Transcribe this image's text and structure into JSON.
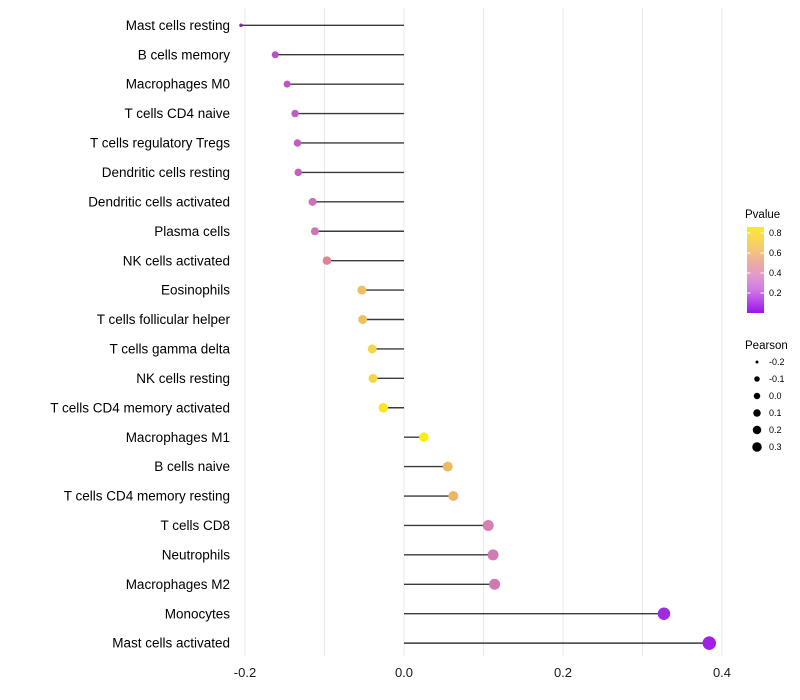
{
  "chart_data": {
    "type": "lollipop",
    "title": "",
    "xlabel": "",
    "ylabel": "",
    "x_axis": {
      "range": [
        -0.25,
        0.45
      ],
      "ticks": [
        -0.2,
        0.0,
        0.2,
        0.4
      ],
      "tick_labels": [
        "-0.2",
        "0.0",
        "0.2",
        "0.4"
      ],
      "gridlines": [
        -0.2,
        -0.1,
        0.0,
        0.1,
        0.2,
        0.3,
        0.4
      ],
      "baseline": 0.0
    },
    "rows": [
      {
        "label": "Mast cells resting",
        "pearson": -0.205,
        "pvalue_approx": 0.15,
        "color": "#7b2fa0",
        "dot_r": 1.8
      },
      {
        "label": "B cells memory",
        "pearson": -0.162,
        "pvalue_approx": 0.3,
        "color": "#b94fc6",
        "dot_r": 3.5
      },
      {
        "label": "Macrophages M0",
        "pearson": -0.147,
        "pvalue_approx": 0.32,
        "color": "#bd55c5",
        "dot_r": 3.5
      },
      {
        "label": "T cells CD4 naive",
        "pearson": -0.137,
        "pvalue_approx": 0.34,
        "color": "#c15cc2",
        "dot_r": 3.75
      },
      {
        "label": "T cells regulatory  Tregs",
        "pearson": -0.134,
        "pvalue_approx": 0.35,
        "color": "#c25ec0",
        "dot_r": 3.75
      },
      {
        "label": "Dendritic cells resting",
        "pearson": -0.133,
        "pvalue_approx": 0.36,
        "color": "#c360bf",
        "dot_r": 3.75
      },
      {
        "label": "Dendritic cells activated",
        "pearson": -0.115,
        "pvalue_approx": 0.42,
        "color": "#cc72b6",
        "dot_r": 4.0
      },
      {
        "label": "Plasma cells",
        "pearson": -0.112,
        "pvalue_approx": 0.43,
        "color": "#ce75b3",
        "dot_r": 4.0
      },
      {
        "label": "NK cells activated",
        "pearson": -0.097,
        "pvalue_approx": 0.5,
        "color": "#de8494",
        "dot_r": 4.25
      },
      {
        "label": "Eosinophils",
        "pearson": -0.053,
        "pvalue_approx": 0.65,
        "color": "#edc15d",
        "dot_r": 4.5
      },
      {
        "label": "T cells follicular helper",
        "pearson": -0.052,
        "pvalue_approx": 0.65,
        "color": "#edc15d",
        "dot_r": 4.5
      },
      {
        "label": "T cells gamma delta",
        "pearson": -0.04,
        "pvalue_approx": 0.75,
        "color": "#f2d747",
        "dot_r": 4.5
      },
      {
        "label": "NK cells resting",
        "pearson": -0.039,
        "pvalue_approx": 0.75,
        "color": "#f2d747",
        "dot_r": 4.5
      },
      {
        "label": "T cells CD4 memory activated",
        "pearson": -0.026,
        "pvalue_approx": 0.82,
        "color": "#f6e71f",
        "dot_r": 4.75
      },
      {
        "label": "Macrophages M1",
        "pearson": 0.025,
        "pvalue_approx": 0.85,
        "color": "#f8ed10",
        "dot_r": 4.75
      },
      {
        "label": "B cells naive",
        "pearson": 0.055,
        "pvalue_approx": 0.62,
        "color": "#eeba60",
        "dot_r": 5.0
      },
      {
        "label": "T cells CD4 memory resting",
        "pearson": 0.062,
        "pvalue_approx": 0.6,
        "color": "#edb566",
        "dot_r": 5.0
      },
      {
        "label": "T cells CD8",
        "pearson": 0.106,
        "pvalue_approx": 0.45,
        "color": "#d480b0",
        "dot_r": 5.5
      },
      {
        "label": "Neutrophils",
        "pearson": 0.112,
        "pvalue_approx": 0.44,
        "color": "#d17cb4",
        "dot_r": 5.5
      },
      {
        "label": "Macrophages M2",
        "pearson": 0.114,
        "pvalue_approx": 0.44,
        "color": "#d07ab5",
        "dot_r": 5.5
      },
      {
        "label": "Monocytes",
        "pearson": 0.327,
        "pvalue_approx": 0.04,
        "color": "#a02ce2",
        "dot_r": 6.25
      },
      {
        "label": "Mast cells activated",
        "pearson": 0.384,
        "pvalue_approx": 0.02,
        "color": "#a41ee8",
        "dot_r": 6.75
      }
    ],
    "legends": {
      "pvalue": {
        "title": "Pvalue",
        "tick_labels": [
          "0.8",
          "0.6",
          "0.4",
          "0.2"
        ],
        "bar_range": [
          0.0,
          0.86
        ],
        "gradient_top_to_bottom": [
          {
            "offset": 0,
            "color": "#fae82b"
          },
          {
            "offset": 0.15,
            "color": "#f7d75a"
          },
          {
            "offset": 0.3,
            "color": "#f3c081"
          },
          {
            "offset": 0.45,
            "color": "#eaa7ab"
          },
          {
            "offset": 0.58,
            "color": "#e297cf"
          },
          {
            "offset": 0.72,
            "color": "#cf7ce5"
          },
          {
            "offset": 0.85,
            "color": "#b94ee9"
          },
          {
            "offset": 1,
            "color": "#9a13ec"
          }
        ]
      },
      "pearson": {
        "title": "Pearson",
        "entries": [
          {
            "label": "-0.2",
            "r": 1.5
          },
          {
            "label": "-0.1",
            "r": 2.75
          },
          {
            "label": "0.0",
            "r": 3.25
          },
          {
            "label": "0.1",
            "r": 3.75
          },
          {
            "label": "0.2",
            "r": 4.25
          },
          {
            "label": "0.3",
            "r": 4.75
          }
        ],
        "dot_color": "#000000"
      }
    },
    "style_colors": {
      "gridline": "#e9e9e9",
      "stem_line": "#3a3a3a",
      "background": "#ffffff",
      "legend_bar_tick": "#ffffff"
    }
  }
}
